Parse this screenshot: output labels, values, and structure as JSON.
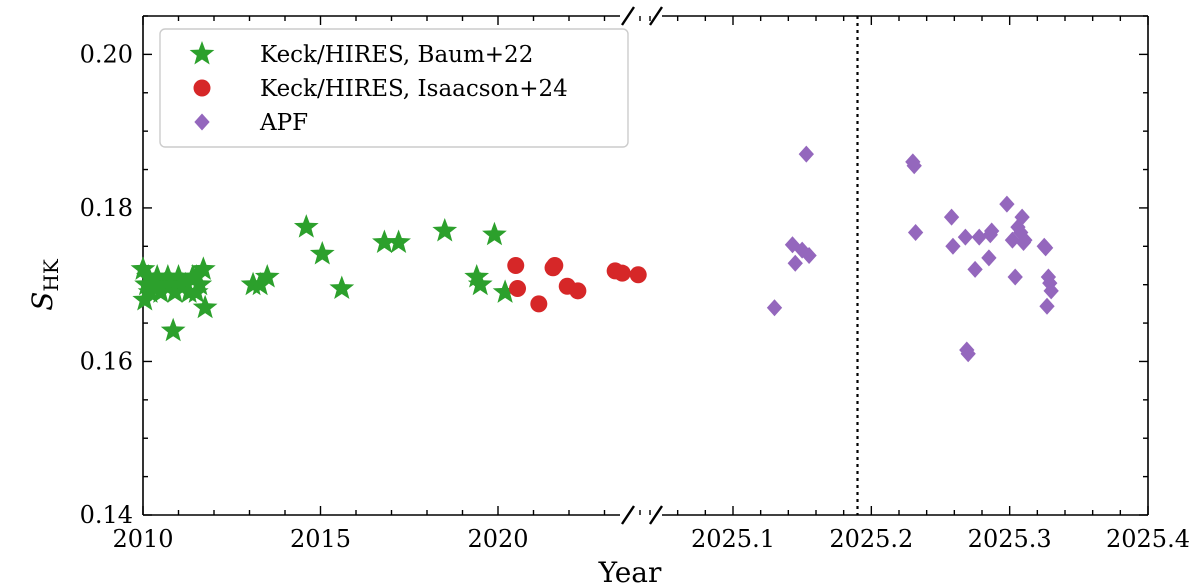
{
  "chart_data": {
    "type": "scatter",
    "title": "",
    "xlabel": "Year",
    "ylabel": "S",
    "ylabel_sub": "HK",
    "ylim": [
      0.14,
      0.205
    ],
    "yticks": [
      "0.14",
      "0.16",
      "0.18",
      "0.20"
    ],
    "broken_x_axis": true,
    "left_panel": {
      "xlim": [
        2010,
        2024
      ],
      "xticks": [
        "2010",
        "2015",
        "2020"
      ]
    },
    "right_panel": {
      "xlim": [
        2025.04,
        2025.4
      ],
      "xticks": [
        "2025.1",
        "2025.2",
        "2025.3",
        "2025.4"
      ],
      "vline_x": 2025.19,
      "vline_style": "dotted"
    },
    "legend": {
      "position": "top-left"
    },
    "series": [
      {
        "name": "Keck/HIRES, Baum+22",
        "marker": "star",
        "color": "#2ca02c",
        "panel": "left",
        "points": [
          [
            2010.0,
            0.172
          ],
          [
            2010.05,
            0.168
          ],
          [
            2010.1,
            0.17
          ],
          [
            2010.15,
            0.171
          ],
          [
            2010.2,
            0.169
          ],
          [
            2010.3,
            0.17
          ],
          [
            2010.4,
            0.171
          ],
          [
            2010.5,
            0.169
          ],
          [
            2010.6,
            0.17
          ],
          [
            2010.7,
            0.171
          ],
          [
            2010.8,
            0.17
          ],
          [
            2010.9,
            0.169
          ],
          [
            2011.0,
            0.171
          ],
          [
            2011.1,
            0.17
          ],
          [
            2011.2,
            0.17
          ],
          [
            2011.3,
            0.169
          ],
          [
            2011.4,
            0.171
          ],
          [
            2011.5,
            0.169
          ],
          [
            2011.6,
            0.17
          ],
          [
            2011.7,
            0.172
          ],
          [
            2011.75,
            0.167
          ],
          [
            2010.85,
            0.164
          ],
          [
            2011.5,
            0.171
          ],
          [
            2010.35,
            0.17
          ],
          [
            2013.1,
            0.17
          ],
          [
            2013.3,
            0.17
          ],
          [
            2013.5,
            0.171
          ],
          [
            2014.6,
            0.1775
          ],
          [
            2015.05,
            0.174
          ],
          [
            2015.6,
            0.1695
          ],
          [
            2016.8,
            0.1755
          ],
          [
            2017.2,
            0.1755
          ],
          [
            2018.5,
            0.177
          ],
          [
            2019.4,
            0.171
          ],
          [
            2019.5,
            0.17
          ],
          [
            2019.9,
            0.1765
          ],
          [
            2020.2,
            0.169
          ]
        ]
      },
      {
        "name": "Keck/HIRES, Isaacson+24",
        "marker": "circle",
        "color": "#d62728",
        "panel": "left",
        "points": [
          [
            2020.5,
            0.1725
          ],
          [
            2020.55,
            0.1695
          ],
          [
            2021.15,
            0.1675
          ],
          [
            2021.55,
            0.1722
          ],
          [
            2021.6,
            0.1725
          ],
          [
            2021.95,
            0.1698
          ],
          [
            2022.25,
            0.1692
          ],
          [
            2023.3,
            0.1718
          ],
          [
            2023.5,
            0.1715
          ],
          [
            2023.95,
            0.1713
          ]
        ]
      },
      {
        "name": "APF",
        "marker": "diamond",
        "color": "#9467bd",
        "panel": "right",
        "points": [
          [
            2025.13,
            0.167
          ],
          [
            2025.143,
            0.1752
          ],
          [
            2025.145,
            0.1728
          ],
          [
            2025.15,
            0.1745
          ],
          [
            2025.153,
            0.187
          ],
          [
            2025.155,
            0.1738
          ],
          [
            2025.23,
            0.186
          ],
          [
            2025.231,
            0.1855
          ],
          [
            2025.232,
            0.1768
          ],
          [
            2025.258,
            0.1788
          ],
          [
            2025.259,
            0.175
          ],
          [
            2025.268,
            0.1762
          ],
          [
            2025.269,
            0.1615
          ],
          [
            2025.27,
            0.161
          ],
          [
            2025.275,
            0.172
          ],
          [
            2025.278,
            0.1762
          ],
          [
            2025.285,
            0.1735
          ],
          [
            2025.286,
            0.1765
          ],
          [
            2025.287,
            0.177
          ],
          [
            2025.298,
            0.1805
          ],
          [
            2025.302,
            0.1758
          ],
          [
            2025.304,
            0.171
          ],
          [
            2025.306,
            0.1775
          ],
          [
            2025.308,
            0.1768
          ],
          [
            2025.309,
            0.1788
          ],
          [
            2025.31,
            0.1755
          ],
          [
            2025.311,
            0.1758
          ],
          [
            2025.325,
            0.175
          ],
          [
            2025.326,
            0.1748
          ],
          [
            2025.327,
            0.1672
          ],
          [
            2025.328,
            0.171
          ],
          [
            2025.329,
            0.1702
          ],
          [
            2025.33,
            0.1692
          ]
        ]
      }
    ]
  }
}
